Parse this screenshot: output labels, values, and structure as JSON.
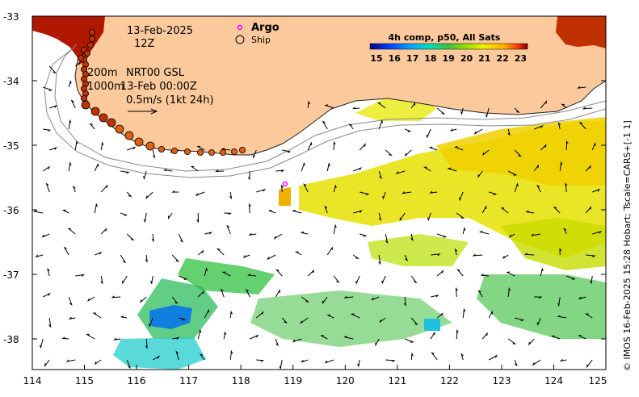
{
  "map": {
    "date": "13-Feb-2025",
    "hour": "12Z",
    "legend": {
      "argo": "Argo",
      "ship": "Ship"
    },
    "contours": "200m",
    "contours_2": "1000m",
    "product": "NRT00 GSL",
    "valid_time": "13-Feb 00:00Z",
    "scale_vector": "0.5m/s (1kt 24h)",
    "colorbar": {
      "title": "4h comp, p50, All Sats",
      "ticks": [
        "15",
        "16",
        "17",
        "18",
        "19",
        "20",
        "21",
        "22",
        "23"
      ],
      "colors": [
        "#000080",
        "#0040ff",
        "#00a0ff",
        "#00e0c0",
        "#40c040",
        "#a0e000",
        "#f0f000",
        "#ffb000",
        "#ff4000",
        "#800000"
      ]
    },
    "x_ticks": [
      "114",
      "115",
      "116",
      "117",
      "118",
      "119",
      "120",
      "121",
      "122",
      "123",
      "124",
      "125"
    ],
    "y_ticks": [
      "-33",
      "-34",
      "-35",
      "-36",
      "-37",
      "-38"
    ],
    "credit": "© IMOS 16-Feb-2025 15:28 Hobart; Tscale=CARS+[-1 1]",
    "land_color": "#fcc99c",
    "argo_color": "#ff00ff"
  }
}
